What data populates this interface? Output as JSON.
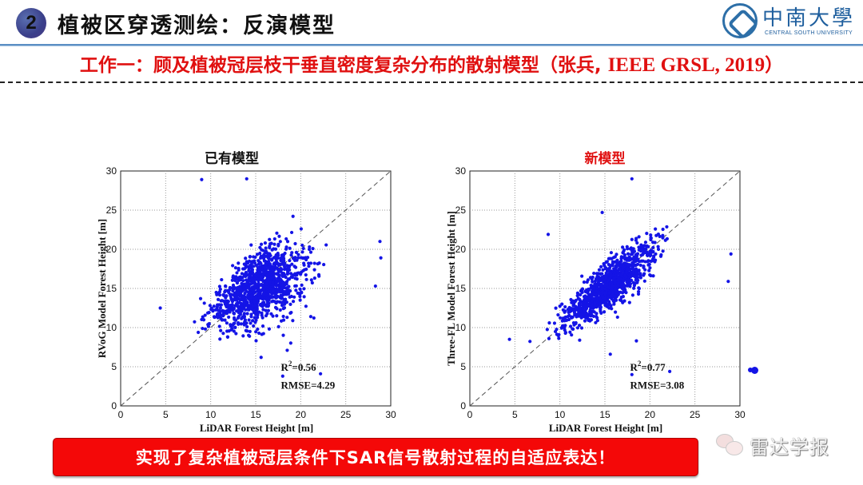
{
  "header": {
    "section_number": "2",
    "title": "植被区穿透测绘：反演模型",
    "logo_cn": "中南大學",
    "logo_en": "CENTRAL SOUTH UNIVERSITY"
  },
  "subtitle": {
    "prefix": "工作一：顾及植被冠层枝干垂直密度复杂分布的散射模型（张兵, ",
    "citation": "IEEE GRSL, 2019",
    "suffix": "）"
  },
  "banner": {
    "text": "实现了复杂植被冠层条件下SAR信号散射过程的自适应表达！"
  },
  "watermark": {
    "text": "雷达学报"
  },
  "colors": {
    "accent_red": "#e01010",
    "banner_red": "#f40808",
    "point_blue": "#1414e6",
    "header_line": "#5b8fc4"
  },
  "chart_data": [
    {
      "type": "scatter",
      "title": "已有模型",
      "title_color": "#111111",
      "xlabel": "LiDAR Forest Height [m]",
      "ylabel": "RVoG Model Forest Height [m]",
      "xlim": [
        0,
        30
      ],
      "ylim": [
        0,
        30
      ],
      "xticks": [
        0,
        5,
        10,
        15,
        20,
        25,
        30
      ],
      "yticks": [
        0,
        5,
        10,
        15,
        20,
        25,
        30
      ],
      "grid": true,
      "reference_line": "1:1 dashed",
      "annotations": {
        "r2_label": "R",
        "r2_sup": "2",
        "r2_value": "=0.56",
        "rmse": "RMSE=4.29"
      },
      "stats": {
        "r2": 0.56,
        "rmse": 4.29
      },
      "trend": {
        "slope": 0.55,
        "intercept": 6.5,
        "spread": 3.4
      },
      "outliers": [
        [
          9.0,
          28.9
        ],
        [
          15.6,
          6.2
        ],
        [
          18.0,
          3.8
        ],
        [
          18.5,
          7.1
        ],
        [
          22.2,
          4.1
        ],
        [
          28.9,
          18.9
        ],
        [
          28.8,
          21.0
        ],
        [
          4.4,
          12.5
        ],
        [
          28.3,
          15.3
        ],
        [
          14.0,
          29.0
        ]
      ],
      "n_points": 1100,
      "seed": 7
    },
    {
      "type": "scatter",
      "title": "新模型",
      "title_color": "#e01010",
      "xlabel": "LiDAR Forest Height [m]",
      "ylabel": "Three-FL Model Forest Height [m]",
      "xlim": [
        0,
        30
      ],
      "ylim": [
        0,
        30
      ],
      "xticks": [
        0,
        5,
        10,
        15,
        20,
        25,
        30
      ],
      "yticks": [
        0,
        5,
        10,
        15,
        20,
        25,
        30
      ],
      "grid": true,
      "reference_line": "1:1 dashed",
      "annotations": {
        "r2_label": "R",
        "r2_sup": "2",
        "r2_value": "=0.77",
        "rmse": "RMSE=3.08"
      },
      "stats": {
        "r2": 0.77,
        "rmse": 3.08
      },
      "trend": {
        "slope": 0.85,
        "intercept": 2.2,
        "spread": 2.1
      },
      "outliers": [
        [
          8.7,
          21.9
        ],
        [
          15.6,
          6.6
        ],
        [
          18.0,
          4.0
        ],
        [
          18.5,
          8.3
        ],
        [
          22.2,
          4.4
        ],
        [
          28.7,
          15.9
        ],
        [
          29.0,
          19.4
        ],
        [
          4.4,
          8.5
        ],
        [
          14.7,
          24.7
        ],
        [
          18.0,
          29.0
        ]
      ],
      "n_points": 1100,
      "seed": 11
    }
  ]
}
